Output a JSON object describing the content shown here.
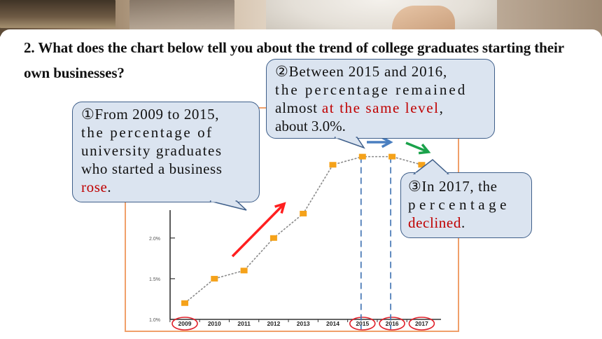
{
  "question": "2. What does the chart below tell you about the trend of college graduates starting their own businesses?",
  "chart_data": {
    "type": "line",
    "title": "",
    "categories": [
      "2009",
      "2010",
      "2011",
      "2012",
      "2013",
      "2014",
      "2015",
      "2016",
      "2017"
    ],
    "values": [
      1.2,
      1.5,
      1.6,
      2.0,
      2.3,
      2.9,
      3.0,
      3.0,
      2.9
    ],
    "y_ticks": [
      "1.0%",
      "1.5%",
      "2.0%"
    ],
    "ylim": [
      1.0,
      3.1
    ],
    "circled_categories": [
      "2009",
      "2015",
      "2016",
      "2017"
    ],
    "colors": {
      "line": "#8a8a8a",
      "marker": "#f5a21a",
      "up_arrow": "#ff1f1f",
      "flat_arrow": "#4a7fc0",
      "down_arrow": "#1aa24a",
      "frame": "#f0a06a",
      "circle": "#e0202a",
      "dashed": "#3b6fb0"
    }
  },
  "callouts": {
    "c1": {
      "prefix": "①From 2009 to 2015,",
      "line2": "the percentage of",
      "line3": "university graduates",
      "line4": "who started a business",
      "highlight": "rose",
      "suffix": "."
    },
    "c2": {
      "prefix": "②Between 2015 and 2016,",
      "line2": "the percentage remained",
      "line3a": "almost ",
      "highlight": "at the same level",
      "line3b": ",",
      "line4": "about 3.0%."
    },
    "c3": {
      "prefix": "③In 2017, the",
      "line2": "percentage",
      "highlight": "declined",
      "suffix": "."
    }
  }
}
